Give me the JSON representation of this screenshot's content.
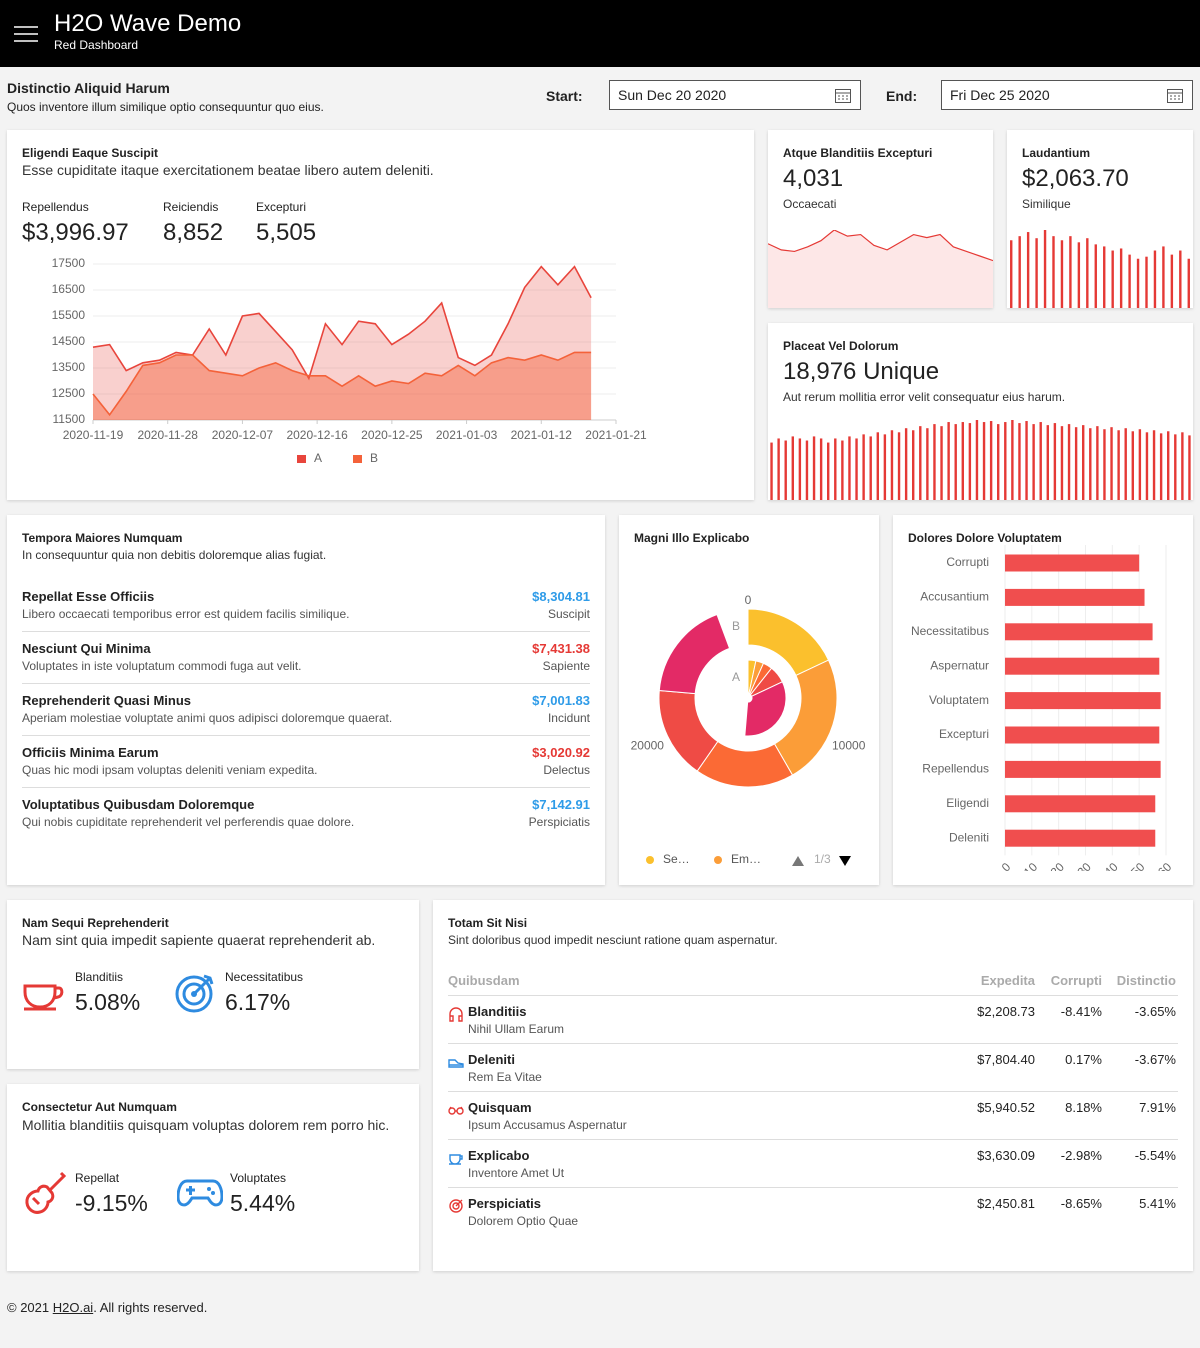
{
  "header": {
    "title": "H2O Wave Demo",
    "subtitle": "Red Dashboard"
  },
  "toolbar": {
    "title": "Distinctio Aliquid Harum",
    "caption": "Quos inventore illum similique optio consequuntur quo eius.",
    "start_label": "Start:",
    "start_value": "Sun Dec 20 2020",
    "end_label": "End:",
    "end_value": "Fri Dec 25 2020"
  },
  "cards": {
    "eligendi": {
      "title": "Eligendi Eaque Suscipit",
      "caption": "Esse cupiditate itaque exercitationem beatae libero autem deleniti.",
      "stats": [
        {
          "label": "Repellendus",
          "value": "$3,996.97"
        },
        {
          "label": "Reiciendis",
          "value": "8,852"
        },
        {
          "label": "Excepturi",
          "value": "5,505"
        }
      ]
    },
    "atque": {
      "title": "Atque Blanditiis Excepturi",
      "value": "4,031",
      "aux": "Occaecati"
    },
    "laudantium": {
      "title": "Laudantium",
      "value": "$2,063.70",
      "aux": "Similique"
    },
    "placeat": {
      "title": "Placeat Vel Dolorum",
      "value": "18,976 Unique",
      "caption": "Aut rerum mollitia error velit consequatur eius harum."
    },
    "tempora": {
      "title": "Tempora Maiores Numquam",
      "caption": "In consequuntur quia non debitis doloremque alias fugiat.",
      "items": [
        {
          "title": "Repellat Esse Officiis",
          "caption": "Libero occaecati temporibus error est quidem facilis similique.",
          "value": "$8,304.81",
          "aux": "Suscipit",
          "color": "#2e9be8"
        },
        {
          "title": "Nesciunt Qui Minima",
          "caption": "Voluptates in iste voluptatum commodi fuga aut velit.",
          "value": "$7,431.38",
          "aux": "Sapiente",
          "color": "#e53935"
        },
        {
          "title": "Reprehenderit Quasi Minus",
          "caption": "Aperiam molestiae voluptate animi quos adipisci doloremque quaerat.",
          "value": "$7,001.83",
          "aux": "Incidunt",
          "color": "#2e9be8"
        },
        {
          "title": "Officiis Minima Earum",
          "caption": "Quas hic modi ipsam voluptas deleniti veniam expedita.",
          "value": "$3,020.92",
          "aux": "Delectus",
          "color": "#e53935"
        },
        {
          "title": "Voluptatibus Quibusdam Doloremque",
          "caption": "Qui nobis cupiditate reprehenderit vel perferendis quae dolore.",
          "value": "$7,142.91",
          "aux": "Perspiciatis",
          "color": "#2e9be8"
        }
      ]
    },
    "magni": {
      "title": "Magni Illo Explicabo"
    },
    "dolores": {
      "title": "Dolores Dolore Voluptatem"
    },
    "nam": {
      "title": "Nam Sequi Reprehenderit",
      "caption": "Nam sint quia impedit sapiente quaerat reprehenderit ab.",
      "stats": [
        {
          "label": "Blanditiis",
          "value": "5.08%"
        },
        {
          "label": "Necessitatibus",
          "value": "6.17%"
        }
      ]
    },
    "consectetur": {
      "title": "Consectetur Aut Numquam",
      "caption": "Mollitia blanditiis quisquam voluptas dolorem rem porro hic.",
      "stats": [
        {
          "label": "Repellat",
          "value": "-9.15%"
        },
        {
          "label": "Voluptates",
          "value": "5.44%"
        }
      ]
    },
    "totam": {
      "title": "Totam Sit Nisi",
      "caption": "Sint doloribus quod impedit nesciunt ratione quam aspernatur.",
      "table": {
        "columns": [
          "Quibusdam",
          "Expedita",
          "Corrupti",
          "Distinctio"
        ],
        "rows": [
          {
            "name": "Blanditiis",
            "caption": "Nihil Ullam Earum",
            "values": [
              "$2,208.73",
              "-8.41%",
              "-3.65%"
            ]
          },
          {
            "name": "Deleniti",
            "caption": "Rem Ea Vitae",
            "values": [
              "$7,804.40",
              "0.17%",
              "-3.67%"
            ]
          },
          {
            "name": "Quisquam",
            "caption": "Ipsum Accusamus Aspernatur",
            "values": [
              "$5,940.52",
              "8.18%",
              "7.91%"
            ]
          },
          {
            "name": "Explicabo",
            "caption": "Inventore Amet Ut",
            "values": [
              "$3,630.09",
              "-2.98%",
              "-5.54%"
            ]
          },
          {
            "name": "Perspiciatis",
            "caption": "Dolorem Optio Quae",
            "values": [
              "$2,450.81",
              "-8.65%",
              "5.41%"
            ]
          }
        ]
      }
    }
  },
  "chart_data": [
    {
      "type": "area",
      "x": [
        "2020-11-19",
        "2020-11-21",
        "2020-11-23",
        "2020-11-25",
        "2020-11-27",
        "2020-11-29",
        "2020-12-01",
        "2020-12-03",
        "2020-12-05",
        "2020-12-07",
        "2020-12-09",
        "2020-12-11",
        "2020-12-13",
        "2020-12-15",
        "2020-12-17",
        "2020-12-19",
        "2020-12-21",
        "2020-12-23",
        "2020-12-25",
        "2020-12-27",
        "2020-12-29",
        "2020-12-31",
        "2021-01-02",
        "2021-01-04",
        "2021-01-06",
        "2021-01-08",
        "2021-01-10",
        "2021-01-12",
        "2021-01-14",
        "2021-01-16",
        "2021-01-18"
      ],
      "series": [
        {
          "name": "A",
          "color": "#e8453c",
          "values": [
            14300,
            14400,
            13400,
            13700,
            13800,
            14100,
            14000,
            15000,
            14000,
            15500,
            15600,
            14900,
            14200,
            13100,
            15200,
            14400,
            15300,
            15200,
            14400,
            14800,
            15300,
            16000,
            13900,
            13600,
            14000,
            15200,
            16600,
            17400,
            16700,
            17400,
            16200
          ]
        },
        {
          "name": "B",
          "color": "#f4623a",
          "values": [
            12500,
            11700,
            12600,
            13600,
            13700,
            14000,
            14000,
            13400,
            13300,
            13200,
            13500,
            13700,
            13400,
            13200,
            13200,
            12800,
            13200,
            12800,
            13000,
            12900,
            13300,
            13200,
            13600,
            13200,
            13700,
            13900,
            13800,
            14000,
            13800,
            14100,
            14100
          ]
        }
      ],
      "xlim": [
        "2020-11-19",
        "2021-01-21"
      ],
      "xticks": [
        "2020-11-19",
        "2020-11-28",
        "2020-12-07",
        "2020-12-16",
        "2020-12-25",
        "2021-01-03",
        "2021-01-12",
        "2021-01-21"
      ],
      "ylim": [
        11500,
        17500
      ],
      "yticks": [
        11500,
        12500,
        13500,
        14500,
        15500,
        16500,
        17500
      ],
      "grid": true,
      "legend": "bottom"
    },
    {
      "type": "area",
      "color": "#e53935",
      "values": [
        42,
        38,
        37,
        40,
        44,
        51,
        47,
        48,
        41,
        38,
        43,
        48,
        46,
        48,
        40,
        37,
        34,
        31
      ]
    },
    {
      "type": "bar",
      "color": "#e53935",
      "values": [
        66,
        70,
        74,
        68,
        76,
        70,
        66,
        70,
        64,
        68,
        62,
        60,
        56,
        58,
        52,
        48,
        50,
        56,
        60,
        52,
        56,
        48
      ]
    },
    {
      "type": "bar",
      "color": "#e53935",
      "values": [
        56,
        60,
        58,
        62,
        60,
        58,
        62,
        60,
        56,
        60,
        58,
        62,
        60,
        64,
        62,
        66,
        64,
        68,
        66,
        70,
        68,
        72,
        70,
        74,
        72,
        76,
        74,
        76,
        75,
        78,
        76,
        77,
        74,
        76,
        78,
        75,
        77,
        74,
        76,
        73,
        75,
        72,
        74,
        71,
        73,
        70,
        72,
        69,
        71,
        68,
        70,
        67,
        69,
        66,
        68,
        65,
        67,
        64,
        66,
        63
      ]
    },
    {
      "type": "donut",
      "categories": [
        "Se…",
        "Em…",
        null,
        null,
        null
      ],
      "colors": [
        "#fbc02d",
        "#fb9d38",
        "#fb6a35",
        "#ef4b45",
        "#e32a66"
      ],
      "series": [
        {
          "name": "A",
          "values": [
            1000,
            1000,
            1200,
            2200,
            10000
          ]
        },
        {
          "name": "B",
          "values": [
            5400,
            7100,
            5400,
            5000,
            5400
          ]
        }
      ],
      "xlim": [
        0,
        30000
      ],
      "xticks": [
        0,
        10000,
        20000
      ],
      "legend": "bottom",
      "legend_page": "1/3"
    },
    {
      "type": "bar",
      "orientation": "horizontal",
      "color": "#f04e4e",
      "categories": [
        "Corrupti",
        "Accusantium",
        "Necessitatibus",
        "Aspernatur",
        "Voluptatem",
        "Excepturi",
        "Repellendus",
        "Eligendi",
        "Deleniti"
      ],
      "values": [
        50,
        52,
        55,
        57.5,
        58,
        57.5,
        58,
        56,
        56
      ],
      "xlim": [
        0,
        60
      ],
      "xticks": [
        0,
        10,
        20,
        30,
        40,
        50,
        60
      ],
      "grid": true
    }
  ],
  "footer": {
    "prefix": "© 2021 ",
    "link": "H2O.ai",
    "suffix": ". All rights reserved."
  }
}
